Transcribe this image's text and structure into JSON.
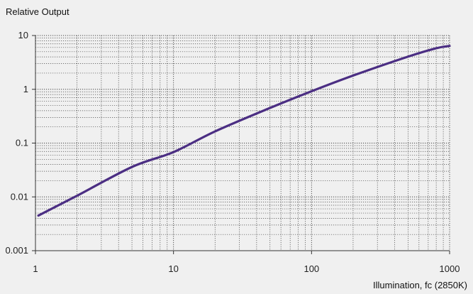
{
  "chart_data": {
    "type": "line",
    "title": "",
    "ylabel": "Relative Output",
    "xlabel": "Illumination, fc (2850K)",
    "x_scale": "log",
    "y_scale": "log",
    "xlim": [
      1,
      1000
    ],
    "ylim": [
      0.001,
      10
    ],
    "x_ticks": [
      {
        "value": 1,
        "label": "1"
      },
      {
        "value": 10,
        "label": "10"
      },
      {
        "value": 100,
        "label": "100"
      },
      {
        "value": 1000,
        "label": "1000"
      }
    ],
    "y_ticks": [
      {
        "value": 10,
        "label": "10"
      },
      {
        "value": 1,
        "label": "1"
      },
      {
        "value": 0.1,
        "label": "0.1"
      },
      {
        "value": 0.01,
        "label": "0.01"
      },
      {
        "value": 0.001,
        "label": "0.001"
      }
    ],
    "grid": true,
    "series": [
      {
        "color": "#4b2e83",
        "x": [
          1.05,
          2,
          5,
          10,
          20,
          50,
          100,
          200,
          500,
          800,
          1000
        ],
        "y": [
          0.0045,
          0.0105,
          0.036,
          0.068,
          0.165,
          0.45,
          0.92,
          1.8,
          4.05,
          5.8,
          6.4
        ]
      }
    ],
    "colors": {
      "background": "#f0f0f0",
      "grid": "#444444",
      "axis": "#333333"
    }
  }
}
